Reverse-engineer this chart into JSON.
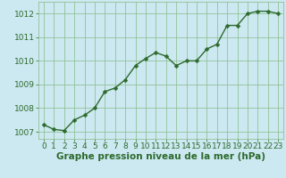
{
  "x": [
    0,
    1,
    2,
    3,
    4,
    5,
    6,
    7,
    8,
    9,
    10,
    11,
    12,
    13,
    14,
    15,
    16,
    17,
    18,
    19,
    20,
    21,
    22,
    23
  ],
  "y": [
    1007.3,
    1007.1,
    1007.05,
    1007.5,
    1007.7,
    1008.0,
    1008.7,
    1008.85,
    1009.2,
    1009.8,
    1010.1,
    1010.35,
    1010.2,
    1009.8,
    1010.0,
    1010.0,
    1010.5,
    1010.7,
    1011.5,
    1011.5,
    1012.0,
    1012.1,
    1012.1,
    1012.0
  ],
  "line_color": "#2d6a2d",
  "marker_color": "#2d6a2d",
  "bg_color": "#cce8f0",
  "plot_bg_color": "#cce8f0",
  "grid_color": "#88bb88",
  "xlabel": "Graphe pression niveau de la mer (hPa)",
  "xlabel_color": "#2d6a2d",
  "ylabel_ticks": [
    1007,
    1008,
    1009,
    1010,
    1011,
    1012
  ],
  "xticks": [
    0,
    1,
    2,
    3,
    4,
    5,
    6,
    7,
    8,
    9,
    10,
    11,
    12,
    13,
    14,
    15,
    16,
    17,
    18,
    19,
    20,
    21,
    22,
    23
  ],
  "ylim": [
    1006.7,
    1012.5
  ],
  "xlim": [
    -0.5,
    23.5
  ],
  "tick_color": "#2d6a2d",
  "tick_fontsize": 6.5,
  "xlabel_fontsize": 7.5,
  "marker_size": 2.5,
  "line_width": 1.0
}
